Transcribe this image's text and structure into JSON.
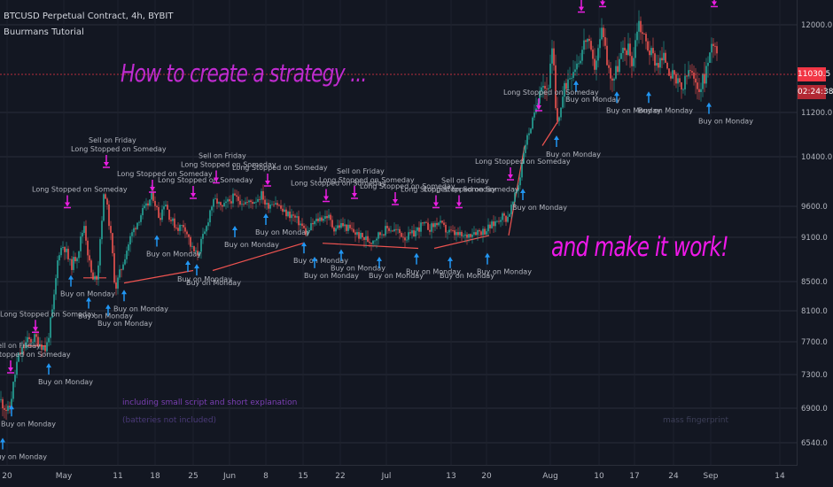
{
  "header": {
    "symbol_line": "BTCUSD Perpetual Contract, 4h, BYBIT",
    "study_name": "Buurmans Tutorial"
  },
  "overlay_texts": {
    "headline": "How to create a strategy ...",
    "tagline": "and make it work!",
    "note_script": "including small script and short explanation",
    "note_batteries": "(batteries not included)",
    "note_fingerprint": "mass fingerprint"
  },
  "price_badges": {
    "last_price": "11030.5",
    "countdown": "02:24:38"
  },
  "colors": {
    "background": "#131722",
    "up_candle": "#26a69a",
    "down_candle": "#ef5350",
    "buy_arrow": "#2196f3",
    "sell_marker": "#e91ee0",
    "price_badge": "#f23645"
  },
  "chart_data": {
    "type": "candlestick",
    "title": "BTCUSD Perpetual Contract, 4h, BYBIT",
    "x_tick_labels": [
      "20",
      "May",
      "11",
      "18",
      "25",
      "Jun",
      "8",
      "15",
      "22",
      "Jul",
      "13",
      "20",
      "Aug",
      "10",
      "17",
      "24",
      "Sep",
      "14"
    ],
    "y_tick_labels": [
      "6540.0",
      "6900.0",
      "7300.0",
      "7700.0",
      "8100.0",
      "8500.0",
      "9100.0",
      "9600.0",
      "10400.0",
      "11200.0",
      "12000.0"
    ],
    "y_ticks": [
      6540,
      6900,
      7300,
      7700,
      8100,
      8500,
      9100,
      9600,
      10400,
      11200,
      12000
    ],
    "ylim": [
      6300,
      12500
    ],
    "close_path": [
      [
        0,
        7000
      ],
      [
        10,
        6850
      ],
      [
        20,
        7500
      ],
      [
        30,
        7700
      ],
      [
        40,
        7750
      ],
      [
        52,
        7600
      ],
      [
        60,
        8150
      ],
      [
        66,
        8900
      ],
      [
        72,
        9000
      ],
      [
        80,
        8700
      ],
      [
        88,
        8900
      ],
      [
        95,
        9300
      ],
      [
        100,
        8800
      ],
      [
        105,
        8500
      ],
      [
        110,
        8600
      ],
      [
        118,
        9900
      ],
      [
        126,
        9000
      ],
      [
        130,
        8400
      ],
      [
        135,
        8600
      ],
      [
        142,
        8900
      ],
      [
        150,
        9200
      ],
      [
        160,
        9500
      ],
      [
        166,
        9600
      ],
      [
        172,
        9800
      ],
      [
        180,
        9400
      ],
      [
        186,
        9700
      ],
      [
        192,
        9400
      ],
      [
        200,
        9250
      ],
      [
        208,
        9300
      ],
      [
        216,
        8950
      ],
      [
        222,
        8850
      ],
      [
        232,
        9200
      ],
      [
        238,
        9600
      ],
      [
        244,
        9700
      ],
      [
        250,
        9550
      ],
      [
        256,
        9650
      ],
      [
        264,
        9750
      ],
      [
        270,
        9700
      ],
      [
        280,
        9650
      ],
      [
        288,
        9700
      ],
      [
        296,
        9800
      ],
      [
        300,
        9600
      ],
      [
        310,
        9700
      ],
      [
        320,
        9500
      ],
      [
        330,
        9450
      ],
      [
        340,
        9300
      ],
      [
        346,
        9150
      ],
      [
        352,
        9300
      ],
      [
        360,
        9400
      ],
      [
        370,
        9450
      ],
      [
        376,
        9250
      ],
      [
        386,
        9300
      ],
      [
        398,
        9200
      ],
      [
        408,
        9100
      ],
      [
        418,
        9050
      ],
      [
        428,
        9150
      ],
      [
        438,
        9250
      ],
      [
        448,
        9200
      ],
      [
        458,
        9100
      ],
      [
        466,
        9150
      ],
      [
        476,
        9300
      ],
      [
        486,
        9250
      ],
      [
        494,
        9350
      ],
      [
        504,
        9200
      ],
      [
        514,
        9150
      ],
      [
        524,
        9100
      ],
      [
        534,
        9200
      ],
      [
        546,
        9200
      ],
      [
        556,
        9300
      ],
      [
        566,
        9450
      ],
      [
        572,
        9400
      ],
      [
        580,
        9700
      ],
      [
        586,
        10000
      ],
      [
        592,
        10600
      ],
      [
        598,
        10900
      ],
      [
        604,
        11200
      ],
      [
        610,
        11500
      ],
      [
        618,
        11400
      ],
      [
        624,
        11800
      ],
      [
        628,
        11000
      ],
      [
        634,
        11300
      ],
      [
        640,
        11500
      ],
      [
        646,
        11600
      ],
      [
        654,
        11700
      ],
      [
        662,
        11900
      ],
      [
        670,
        11600
      ],
      [
        676,
        11800
      ],
      [
        680,
        12000
      ],
      [
        686,
        11600
      ],
      [
        692,
        11500
      ],
      [
        700,
        11700
      ],
      [
        708,
        11800
      ],
      [
        714,
        11650
      ],
      [
        720,
        12050
      ],
      [
        726,
        11900
      ],
      [
        734,
        11750
      ],
      [
        742,
        11650
      ],
      [
        750,
        11700
      ],
      [
        760,
        11500
      ],
      [
        770,
        11400
      ],
      [
        778,
        11600
      ],
      [
        786,
        11400
      ],
      [
        794,
        11500
      ],
      [
        800,
        11700
      ],
      [
        806,
        11900
      ],
      [
        810,
        11700
      ]
    ],
    "labels": {
      "buy": "Buy on Monday",
      "sell": "Sell on Friday",
      "stop": "Long Stopped on Someday"
    },
    "buy_signals": [
      [
        3,
        6600
      ],
      [
        13,
        6950
      ],
      [
        55,
        7450
      ],
      [
        80,
        8600
      ],
      [
        100,
        8300
      ],
      [
        122,
        8200
      ],
      [
        140,
        8400
      ],
      [
        177,
        9150
      ],
      [
        212,
        8800
      ],
      [
        222,
        8750
      ],
      [
        265,
        9300
      ],
      [
        300,
        9500
      ],
      [
        343,
        9050
      ],
      [
        355,
        8850
      ],
      [
        385,
        8950
      ],
      [
        428,
        8850
      ],
      [
        470,
        8900
      ],
      [
        508,
        8850
      ],
      [
        550,
        8900
      ],
      [
        590,
        9900
      ],
      [
        628,
        10800
      ],
      [
        650,
        11500
      ],
      [
        696,
        11400
      ],
      [
        732,
        11400
      ],
      [
        800,
        11300
      ]
    ],
    "sell_signals": [
      [
        12,
        7300
      ],
      [
        40,
        7800
      ],
      [
        76,
        9550
      ],
      [
        120,
        10200
      ],
      [
        172,
        9800
      ],
      [
        218,
        9700
      ],
      [
        244,
        9950
      ],
      [
        302,
        9900
      ],
      [
        368,
        9650
      ],
      [
        400,
        9700
      ],
      [
        446,
        9600
      ],
      [
        492,
        9550
      ],
      [
        518,
        9550
      ],
      [
        576,
        10000
      ],
      [
        608,
        11200
      ],
      [
        656,
        12100
      ],
      [
        680,
        12150
      ],
      [
        806,
        12150
      ]
    ],
    "stop_levels": [
      [
        26,
        7650
      ],
      [
        52,
        7650
      ],
      [
        94,
        8550
      ],
      [
        120,
        8550
      ],
      [
        140,
        8480
      ],
      [
        218,
        8650
      ],
      [
        240,
        8650
      ],
      [
        342,
        9020
      ],
      [
        364,
        9020
      ],
      [
        472,
        8950
      ],
      [
        490,
        8950
      ],
      [
        552,
        9130
      ],
      [
        574,
        9130
      ],
      [
        592,
        10600
      ],
      [
        612,
        10600
      ],
      [
        630,
        11050
      ],
      [
        654,
        11050
      ]
    ]
  }
}
